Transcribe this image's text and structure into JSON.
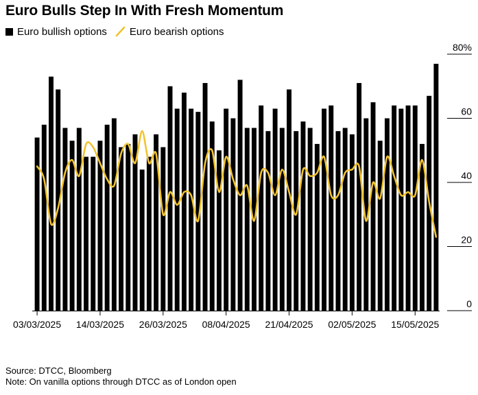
{
  "chart_data": {
    "type": "bar",
    "title": "Euro Bulls Step In With Fresh Momentum",
    "series": [
      {
        "name": "Euro bullish options",
        "kind": "bar",
        "color": "#000000",
        "values": [
          54,
          58,
          73,
          69,
          57,
          53,
          57,
          48,
          48,
          53,
          58,
          60,
          51,
          52,
          55,
          44,
          48,
          55,
          51,
          70,
          63,
          68,
          63,
          62,
          71,
          59,
          50,
          63,
          60,
          72,
          57,
          57,
          64,
          56,
          63,
          57,
          69,
          56,
          59,
          57,
          52,
          63,
          64,
          56,
          57,
          55,
          71,
          60,
          65,
          53,
          60,
          64,
          63,
          64,
          64,
          52,
          67,
          77
        ],
        "color_name": "black"
      },
      {
        "name": "Euro bearish options",
        "kind": "line",
        "color": "#F2C22F",
        "values": [
          45,
          41,
          27,
          32,
          43,
          47,
          42,
          52,
          51,
          46,
          41,
          39,
          49,
          52,
          46,
          56,
          46,
          49,
          30,
          37,
          33,
          37,
          36,
          28,
          46,
          50,
          37,
          48,
          41,
          36,
          39,
          28,
          43,
          43,
          36,
          44,
          37,
          30,
          44,
          42,
          43,
          48,
          36,
          36,
          43,
          44,
          45,
          28,
          40,
          35,
          48,
          42,
          36,
          37,
          36,
          47,
          34,
          23
        ],
        "color_name": "yellow"
      }
    ],
    "x_tick_labels": [
      "03/03/2025",
      "14/03/2025",
      "26/03/2025",
      "08/04/2025",
      "21/04/2025",
      "02/05/2025",
      "15/05/2025"
    ],
    "x_tick_indices": [
      0,
      9,
      18,
      27,
      36,
      45,
      54
    ],
    "y_ticks": [
      0,
      20,
      40,
      60,
      80
    ],
    "y_tick_labels": [
      "0",
      "20",
      "40",
      "60",
      "80%"
    ],
    "ylim": [
      0,
      80
    ],
    "xlabel": "",
    "ylabel": "",
    "grid": false,
    "legend_position": "top-left"
  },
  "legend": {
    "bullish_label": "Euro bullish options",
    "bearish_label": "Euro bearish options"
  },
  "footer": {
    "source": "Source: DTCC, Bloomberg",
    "note": "Note: On vanilla options through DTCC as of London open"
  }
}
